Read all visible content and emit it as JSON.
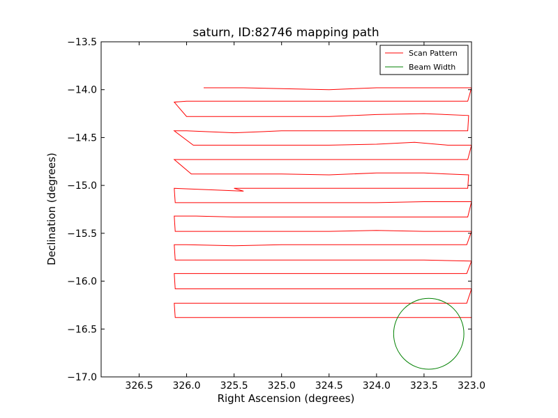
{
  "chart_data": {
    "type": "line",
    "title": "saturn, ID:82746 mapping path",
    "xlabel": "Right Ascension (degrees)",
    "ylabel": "Declination (degrees)",
    "xlim": [
      326.9,
      323.0
    ],
    "ylim": [
      -17.0,
      -13.5
    ],
    "x_axis_inverted": true,
    "grid": false,
    "legend_position": "top-right",
    "xticks": [
      "326.5",
      "326.0",
      "325.5",
      "325.0",
      "324.5",
      "324.0",
      "323.5",
      "323.0"
    ],
    "yticks": [
      "−13.5",
      "−14.0",
      "−14.5",
      "−15.0",
      "−15.5",
      "−16.0",
      "−16.5",
      "−17.0"
    ],
    "colors": {
      "scan": "#ff0000",
      "beam": "#008000"
    },
    "series": [
      {
        "name": "Scan Pattern",
        "x": [
          325.82,
          325.4,
          325.0,
          324.5,
          324.0,
          323.5,
          323.1,
          323.0,
          323.04,
          323.5,
          324.0,
          324.5,
          325.0,
          325.5,
          326.0,
          326.13,
          326.0,
          325.5,
          325.4,
          325.0,
          324.5,
          324.0,
          323.5,
          323.03,
          323.04,
          323.5,
          324.0,
          324.5,
          325.0,
          325.5,
          326.0,
          326.13,
          325.93,
          325.5,
          325.4,
          325.0,
          324.5,
          324.0,
          323.6,
          323.25,
          323.0,
          323.04,
          323.5,
          324.0,
          324.5,
          325.0,
          325.5,
          326.0,
          326.13,
          325.95,
          325.5,
          325.0,
          324.5,
          324.0,
          323.5,
          323.03,
          323.04,
          323.5,
          324.0,
          324.5,
          325.0,
          325.5,
          325.4,
          326.13,
          326.12,
          325.5,
          325.0,
          324.5,
          324.0,
          323.5,
          323.12,
          323.0,
          323.04,
          323.5,
          324.0,
          324.5,
          325.0,
          325.5,
          325.9,
          326.13,
          326.12,
          325.5,
          325.0,
          324.5,
          324.0,
          323.5,
          323.28,
          323.0,
          323.05,
          323.5,
          324.0,
          324.5,
          325.0,
          325.5,
          326.0,
          326.13,
          326.12,
          325.5,
          325.0,
          324.5,
          324.0,
          323.5,
          323.0,
          323.05,
          323.5,
          324.0,
          324.5,
          325.0,
          325.5,
          326.0,
          326.13,
          326.12,
          325.5,
          325.0,
          324.5,
          324.0,
          323.5,
          323.1,
          323.0,
          323.05,
          323.5,
          324.0,
          324.5,
          325.0,
          325.5,
          326.0,
          326.13,
          326.12,
          325.5,
          325.0,
          324.5,
          324.0,
          323.5,
          323.0
        ],
        "y": [
          -13.98,
          -13.98,
          -13.99,
          -14.0,
          -13.98,
          -13.98,
          -13.98,
          -13.98,
          -14.12,
          -14.12,
          -14.12,
          -14.12,
          -14.12,
          -14.12,
          -14.12,
          -14.13,
          -14.28,
          -14.28,
          -14.28,
          -14.28,
          -14.28,
          -14.26,
          -14.25,
          -14.27,
          -14.43,
          -14.43,
          -14.43,
          -14.43,
          -14.43,
          -14.45,
          -14.43,
          -14.43,
          -14.58,
          -14.58,
          -14.58,
          -14.58,
          -14.58,
          -14.57,
          -14.55,
          -14.58,
          -14.58,
          -14.73,
          -14.73,
          -14.73,
          -14.73,
          -14.73,
          -14.73,
          -14.73,
          -14.73,
          -14.88,
          -14.88,
          -14.88,
          -14.89,
          -14.87,
          -14.87,
          -14.89,
          -15.03,
          -15.03,
          -15.03,
          -15.03,
          -15.03,
          -15.03,
          -15.06,
          -15.03,
          -15.18,
          -15.18,
          -15.18,
          -15.18,
          -15.18,
          -15.17,
          -15.17,
          -15.17,
          -15.33,
          -15.33,
          -15.33,
          -15.33,
          -15.33,
          -15.33,
          -15.32,
          -15.32,
          -15.48,
          -15.48,
          -15.48,
          -15.48,
          -15.47,
          -15.48,
          -15.48,
          -15.48,
          -15.62,
          -15.62,
          -15.62,
          -15.62,
          -15.62,
          -15.63,
          -15.62,
          -15.62,
          -15.78,
          -15.78,
          -15.78,
          -15.78,
          -15.78,
          -15.78,
          -15.79,
          -15.92,
          -15.92,
          -15.92,
          -15.92,
          -15.92,
          -15.92,
          -15.92,
          -15.92,
          -16.08,
          -16.08,
          -16.08,
          -16.08,
          -16.08,
          -16.08,
          -16.08,
          -16.08,
          -16.23,
          -16.23,
          -16.23,
          -16.23,
          -16.23,
          -16.23,
          -16.23,
          -16.23,
          -16.38,
          -16.38,
          -16.38,
          -16.38,
          -16.38,
          -16.38,
          -16.38
        ]
      },
      {
        "name": "Beam Width",
        "center": [
          323.45,
          -16.55
        ],
        "radius": 0.37
      }
    ]
  }
}
